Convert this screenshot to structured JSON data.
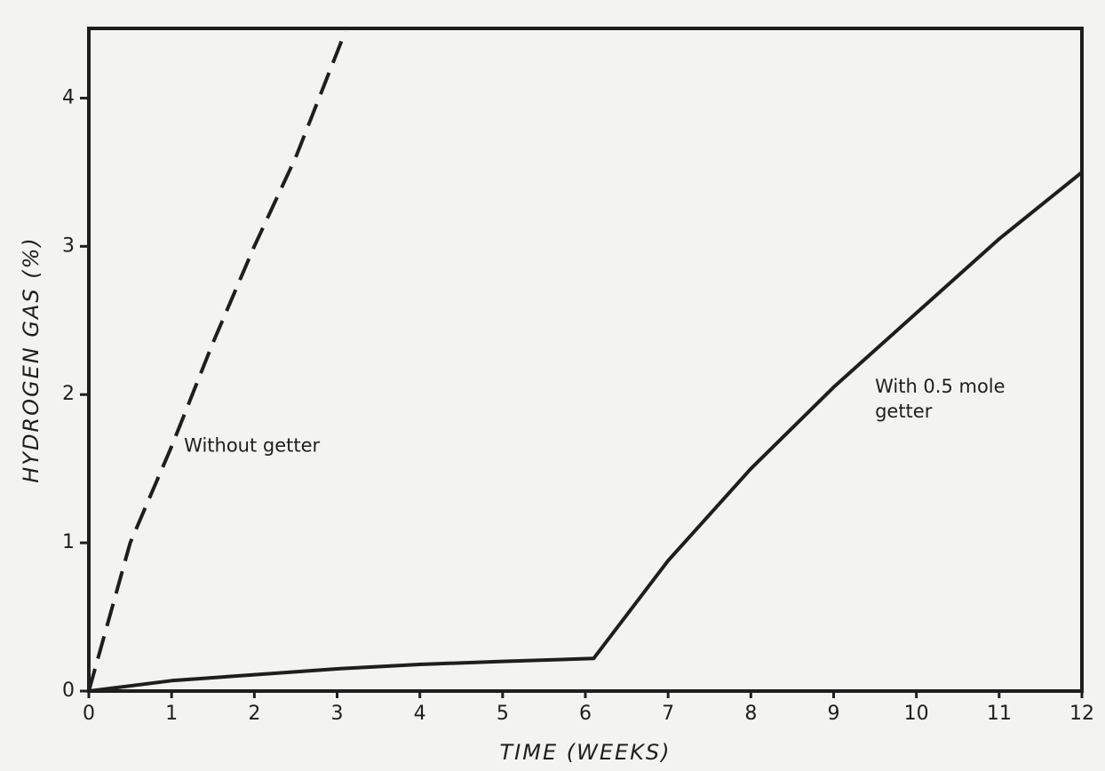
{
  "chart_data": {
    "type": "line",
    "x_label": "TIME (WEEKS)",
    "y_label": "HYDROGEN GAS (%)",
    "xlim": [
      0,
      12
    ],
    "xticks": [
      0,
      1,
      2,
      3,
      4,
      5,
      6,
      7,
      8,
      9,
      10,
      11,
      12
    ],
    "ylim": [
      0,
      4.47
    ],
    "yticks": [
      0,
      1,
      2,
      3,
      4
    ],
    "grid": false,
    "series": [
      {
        "name": "Without getter",
        "label_lines": [
          "Without getter"
        ],
        "color": "#1e1e1e",
        "dash": true,
        "x": [
          0,
          0.5,
          1,
          1.5,
          2,
          2.5,
          3.1
        ],
        "values": [
          0,
          1.0,
          1.65,
          2.35,
          3.0,
          3.6,
          4.45
        ]
      },
      {
        "name": "With 0.5 mole getter",
        "label_lines": [
          "With 0.5 mole",
          "getter"
        ],
        "color": "#1e1e1e",
        "dash": false,
        "x": [
          0,
          1,
          2,
          3,
          4,
          5,
          6.1,
          7,
          8,
          9,
          10,
          11,
          12
        ],
        "values": [
          0,
          0.07,
          0.11,
          0.15,
          0.18,
          0.2,
          0.22,
          0.88,
          1.5,
          2.05,
          2.55,
          3.05,
          3.5
        ]
      }
    ]
  }
}
